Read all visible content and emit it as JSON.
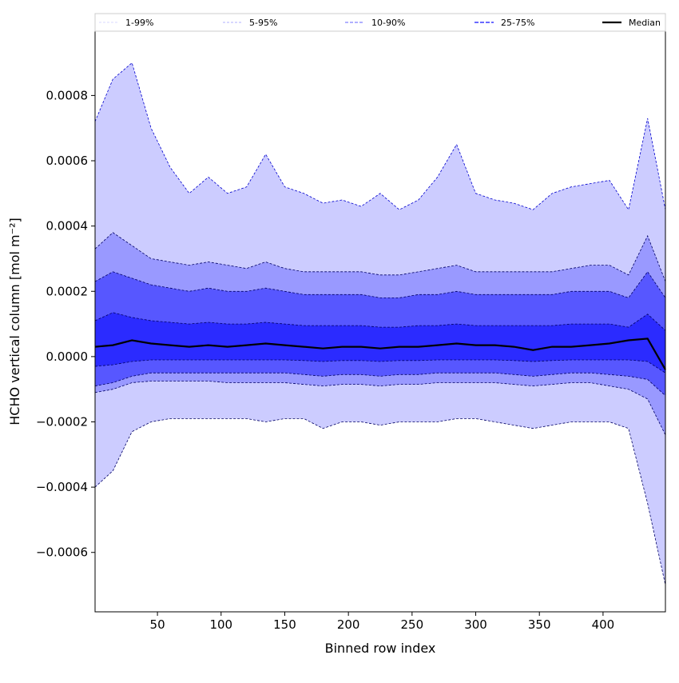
{
  "chart_data": {
    "type": "area",
    "title": "",
    "xlabel": "Binned row index",
    "ylabel": "HCHO vertical column [mol m⁻²]",
    "xlim": [
      1,
      449
    ],
    "ylim": [
      -0.000782,
      0.000997
    ],
    "value_scale": 0.0001,
    "xticks": [
      50,
      100,
      150,
      200,
      250,
      300,
      350,
      400
    ],
    "xtick_labels": [
      "50",
      "100",
      "150",
      "200",
      "250",
      "300",
      "350",
      "400"
    ],
    "yticks": [
      -0.0006,
      -0.0004,
      -0.0002,
      0,
      0.0002,
      0.0004,
      0.0006,
      0.0008
    ],
    "ytick_labels": [
      "−0.0006",
      "−0.0004",
      "−0.0002",
      "0.0000",
      "0.0002",
      "0.0004",
      "0.0006",
      "0.0008"
    ],
    "legend_position": "top",
    "legend": [
      "1-99%",
      "5-95%",
      "10-90%",
      "25-75%",
      "Median"
    ],
    "x": [
      1,
      15,
      30,
      45,
      60,
      75,
      90,
      105,
      120,
      135,
      150,
      165,
      180,
      195,
      210,
      225,
      240,
      255,
      270,
      285,
      300,
      315,
      330,
      345,
      360,
      375,
      390,
      405,
      420,
      435,
      449
    ],
    "series": [
      {
        "name": "p99",
        "values": [
          7.2,
          8.5,
          9.0,
          7.0,
          5.8,
          5.0,
          5.5,
          5.0,
          5.2,
          6.2,
          5.2,
          5.0,
          4.7,
          4.8,
          4.6,
          5.0,
          4.5,
          4.8,
          5.5,
          6.5,
          5.0,
          4.8,
          4.7,
          4.5,
          5.0,
          5.2,
          5.3,
          5.4,
          4.5,
          7.3,
          4.5
        ]
      },
      {
        "name": "p95",
        "values": [
          3.3,
          3.8,
          3.4,
          3.0,
          2.9,
          2.8,
          2.9,
          2.8,
          2.7,
          2.9,
          2.7,
          2.6,
          2.6,
          2.6,
          2.6,
          2.5,
          2.5,
          2.6,
          2.7,
          2.8,
          2.6,
          2.6,
          2.6,
          2.6,
          2.6,
          2.7,
          2.8,
          2.8,
          2.5,
          3.7,
          2.3
        ]
      },
      {
        "name": "p90",
        "values": [
          2.3,
          2.6,
          2.4,
          2.2,
          2.1,
          2.0,
          2.1,
          2.0,
          2.0,
          2.1,
          2.0,
          1.9,
          1.9,
          1.9,
          1.9,
          1.8,
          1.8,
          1.9,
          1.9,
          2.0,
          1.9,
          1.9,
          1.9,
          1.9,
          1.9,
          2.0,
          2.0,
          2.0,
          1.8,
          2.6,
          1.8
        ]
      },
      {
        "name": "p75",
        "values": [
          1.1,
          1.35,
          1.2,
          1.1,
          1.05,
          1.0,
          1.05,
          1.0,
          1.0,
          1.05,
          1.0,
          0.95,
          0.95,
          0.95,
          0.95,
          0.9,
          0.9,
          0.95,
          0.95,
          1.0,
          0.95,
          0.95,
          0.95,
          0.95,
          0.95,
          1.0,
          1.0,
          1.0,
          0.9,
          1.3,
          0.8
        ]
      },
      {
        "name": "Median",
        "values": [
          0.3,
          0.35,
          0.5,
          0.4,
          0.35,
          0.3,
          0.35,
          0.3,
          0.35,
          0.4,
          0.35,
          0.3,
          0.25,
          0.3,
          0.3,
          0.25,
          0.3,
          0.3,
          0.35,
          0.4,
          0.35,
          0.35,
          0.3,
          0.2,
          0.3,
          0.3,
          0.35,
          0.4,
          0.5,
          0.55,
          -0.4
        ]
      },
      {
        "name": "p25",
        "values": [
          -0.3,
          -0.25,
          -0.15,
          -0.1,
          -0.1,
          -0.1,
          -0.1,
          -0.1,
          -0.1,
          -0.1,
          -0.1,
          -0.12,
          -0.15,
          -0.12,
          -0.12,
          -0.15,
          -0.12,
          -0.12,
          -0.1,
          -0.1,
          -0.1,
          -0.1,
          -0.12,
          -0.15,
          -0.12,
          -0.1,
          -0.1,
          -0.1,
          -0.1,
          -0.15,
          -0.5
        ]
      },
      {
        "name": "p10",
        "values": [
          -0.9,
          -0.8,
          -0.6,
          -0.5,
          -0.5,
          -0.5,
          -0.5,
          -0.5,
          -0.5,
          -0.5,
          -0.5,
          -0.55,
          -0.6,
          -0.55,
          -0.55,
          -0.6,
          -0.55,
          -0.55,
          -0.5,
          -0.5,
          -0.5,
          -0.5,
          -0.55,
          -0.6,
          -0.55,
          -0.5,
          -0.5,
          -0.55,
          -0.6,
          -0.7,
          -1.2
        ]
      },
      {
        "name": "p5",
        "values": [
          -1.1,
          -1.0,
          -0.8,
          -0.75,
          -0.75,
          -0.75,
          -0.75,
          -0.8,
          -0.8,
          -0.8,
          -0.8,
          -0.85,
          -0.9,
          -0.85,
          -0.85,
          -0.9,
          -0.85,
          -0.85,
          -0.8,
          -0.8,
          -0.8,
          -0.8,
          -0.85,
          -0.9,
          -0.85,
          -0.8,
          -0.8,
          -0.9,
          -1.0,
          -1.3,
          -2.4
        ]
      },
      {
        "name": "p1",
        "values": [
          -4.0,
          -3.5,
          -2.3,
          -2.0,
          -1.9,
          -1.9,
          -1.9,
          -1.9,
          -1.9,
          -2.0,
          -1.9,
          -1.9,
          -2.2,
          -2.0,
          -2.0,
          -2.1,
          -2.0,
          -2.0,
          -2.0,
          -1.9,
          -1.9,
          -2.0,
          -2.1,
          -2.2,
          -2.1,
          -2.0,
          -2.0,
          -2.0,
          -2.2,
          -4.5,
          -7.0
        ]
      }
    ],
    "bands": [
      {
        "name": "1-99%",
        "lower": "p1",
        "upper": "p99",
        "color": "#ccccff"
      },
      {
        "name": "5-95%",
        "lower": "p5",
        "upper": "p95",
        "color": "#9999ff"
      },
      {
        "name": "10-90%",
        "lower": "p10",
        "upper": "p90",
        "color": "#5757ff"
      },
      {
        "name": "25-75%",
        "lower": "p25",
        "upper": "p75",
        "color": "#2b2bff"
      }
    ],
    "median_color": "#000000"
  }
}
